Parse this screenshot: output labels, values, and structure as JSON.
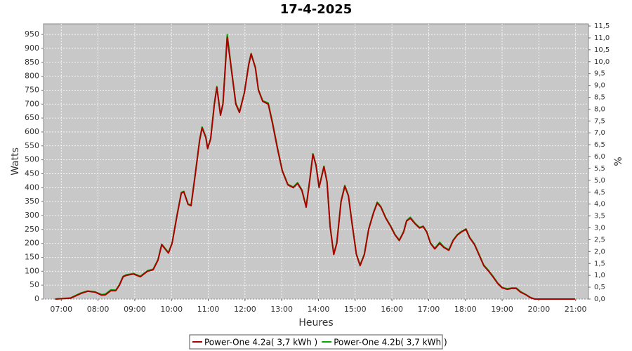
{
  "chart_data": {
    "type": "line",
    "title": "17-4-2025",
    "xlabel": "Heures",
    "ylabel": "Watts",
    "y2label": "%",
    "x": [
      410,
      435,
      452,
      463,
      475,
      486,
      492,
      501,
      509,
      515,
      521,
      526,
      538,
      549,
      561,
      570,
      578,
      584,
      595,
      601,
      609,
      616,
      620,
      627,
      632,
      639,
      646,
      650,
      656,
      659,
      664,
      670,
      674,
      680,
      684,
      691,
      698,
      705,
      711,
      719,
      726,
      730,
      737,
      742,
      749,
      758,
      765,
      773,
      781,
      790,
      799,
      806,
      813,
      820,
      826,
      831,
      836,
      841,
      849,
      854,
      859,
      865,
      870,
      877,
      883,
      889,
      895,
      902,
      908,
      915,
      922,
      930,
      936,
      942,
      950,
      958,
      965,
      972,
      979,
      984,
      990,
      998,
      1005,
      1011,
      1017,
      1023,
      1030,
      1038,
      1045,
      1053,
      1060,
      1067,
      1073,
      1081,
      1087,
      1095,
      1103,
      1110,
      1118,
      1125,
      1133,
      1140,
      1148,
      1156,
      1163,
      1170,
      1179,
      1186,
      1193,
      1259
    ],
    "series": [
      {
        "name": "Power-One 4.2a( 3,7 kWh )",
        "color": "#aa0000",
        "values": [
          0,
          3,
          20,
          28,
          25,
          14,
          15,
          30,
          30,
          50,
          80,
          85,
          90,
          80,
          100,
          105,
          140,
          195,
          165,
          200,
          300,
          380,
          385,
          340,
          335,
          450,
          570,
          615,
          580,
          540,
          575,
          700,
          760,
          660,
          700,
          940,
          820,
          700,
          670,
          740,
          840,
          880,
          830,
          750,
          710,
          700,
          630,
          540,
          460,
          410,
          400,
          415,
          390,
          330,
          430,
          520,
          480,
          400,
          475,
          420,
          260,
          160,
          200,
          350,
          405,
          370,
          270,
          160,
          120,
          160,
          250,
          310,
          345,
          330,
          290,
          260,
          230,
          210,
          240,
          280,
          290,
          270,
          255,
          260,
          240,
          200,
          180,
          200,
          185,
          175,
          210,
          230,
          240,
          250,
          220,
          195,
          155,
          120,
          100,
          80,
          55,
          40,
          35,
          38,
          38,
          25,
          15,
          5,
          0,
          0
        ]
      },
      {
        "name": "Power-One 4.2b( 3,7 kWh )",
        "color": "#00aa00",
        "values": [
          0,
          4,
          22,
          29,
          26,
          16,
          18,
          33,
          32,
          52,
          82,
          87,
          92,
          82,
          102,
          107,
          142,
          197,
          167,
          202,
          302,
          383,
          387,
          342,
          337,
          452,
          572,
          618,
          582,
          542,
          577,
          703,
          763,
          662,
          702,
          950,
          824,
          704,
          672,
          742,
          842,
          882,
          832,
          752,
          712,
          704,
          634,
          544,
          462,
          412,
          402,
          418,
          392,
          332,
          432,
          522,
          482,
          402,
          477,
          422,
          262,
          162,
          202,
          352,
          408,
          372,
          272,
          162,
          122,
          162,
          252,
          312,
          348,
          332,
          292,
          262,
          232,
          212,
          242,
          282,
          294,
          272,
          257,
          262,
          242,
          202,
          182,
          204,
          187,
          177,
          212,
          232,
          242,
          252,
          222,
          197,
          157,
          122,
          102,
          82,
          57,
          42,
          37,
          40,
          40,
          27,
          16,
          6,
          0,
          0
        ]
      }
    ],
    "xlim": [
      391,
      1281
    ],
    "xticks": [
      {
        "value": 420,
        "label": "07:00"
      },
      {
        "value": 480,
        "label": "08:00"
      },
      {
        "value": 540,
        "label": "09:00"
      },
      {
        "value": 600,
        "label": "10:00"
      },
      {
        "value": 660,
        "label": "11:00"
      },
      {
        "value": 720,
        "label": "12:00"
      },
      {
        "value": 780,
        "label": "13:00"
      },
      {
        "value": 840,
        "label": "14:00"
      },
      {
        "value": 900,
        "label": "15:00"
      },
      {
        "value": 960,
        "label": "16:00"
      },
      {
        "value": 1020,
        "label": "17:00"
      },
      {
        "value": 1080,
        "label": "18:00"
      },
      {
        "value": 1140,
        "label": "19:00"
      },
      {
        "value": 1200,
        "label": "20:00"
      },
      {
        "value": 1260,
        "label": "21:00"
      }
    ],
    "ylim": [
      0,
      988
    ],
    "yticks": [
      0,
      50,
      100,
      150,
      200,
      250,
      300,
      350,
      400,
      450,
      500,
      550,
      600,
      650,
      700,
      750,
      800,
      850,
      900,
      950
    ],
    "y2lim": [
      0,
      11.59
    ],
    "y2ticks": [
      {
        "value": 0,
        "label": "0,0"
      },
      {
        "value": 0.5,
        "label": "0,5"
      },
      {
        "value": 1,
        "label": "1,0"
      },
      {
        "value": 1.5,
        "label": "1,5"
      },
      {
        "value": 2,
        "label": "2,0"
      },
      {
        "value": 2.5,
        "label": "2,5"
      },
      {
        "value": 3,
        "label": "3,0"
      },
      {
        "value": 3.5,
        "label": "3,5"
      },
      {
        "value": 4,
        "label": "4,0"
      },
      {
        "value": 4.5,
        "label": "4,5"
      },
      {
        "value": 5,
        "label": "5,0"
      },
      {
        "value": 5.5,
        "label": "5,5"
      },
      {
        "value": 6,
        "label": "6,0"
      },
      {
        "value": 6.5,
        "label": "6,5"
      },
      {
        "value": 7,
        "label": "7,0"
      },
      {
        "value": 7.5,
        "label": "7,5"
      },
      {
        "value": 8,
        "label": "8,0"
      },
      {
        "value": 8.5,
        "label": "8,5"
      },
      {
        "value": 9,
        "label": "9,0"
      },
      {
        "value": 9.5,
        "label": "9,5"
      },
      {
        "value": 10,
        "label": "10,0"
      },
      {
        "value": 10.5,
        "label": "10,5"
      },
      {
        "value": 11,
        "label": "11,0"
      },
      {
        "value": 11.5,
        "label": "11,5"
      }
    ],
    "grid": true
  }
}
